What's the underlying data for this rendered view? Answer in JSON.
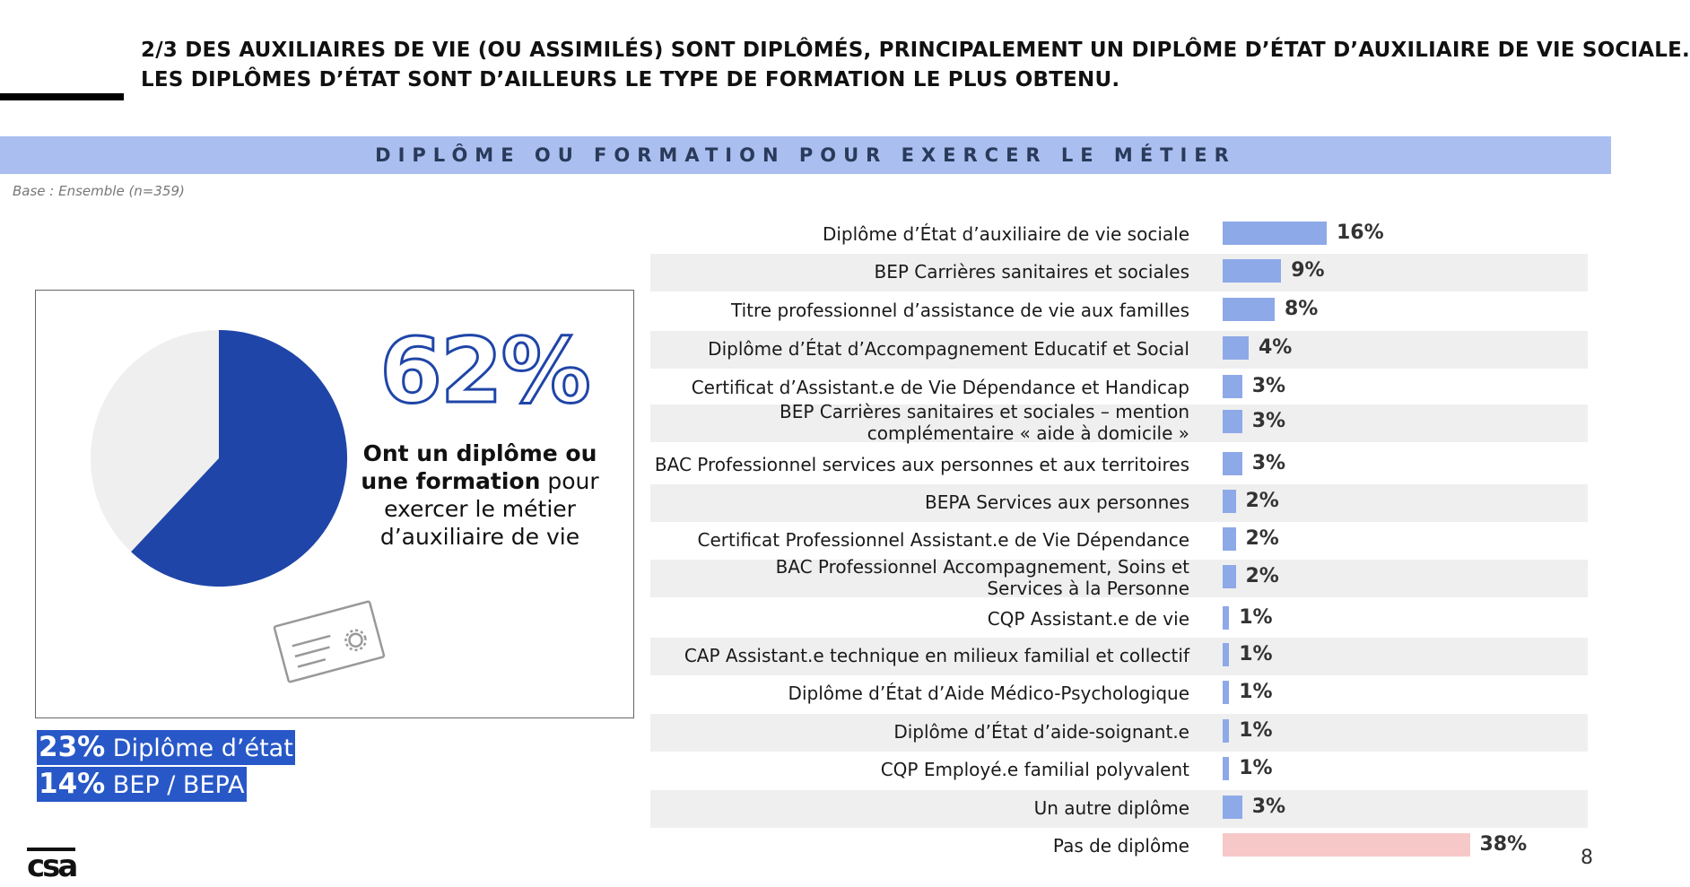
{
  "header": {
    "title_line1": "2/3 DES AUXILIAIRES DE VIE (OU ASSIMILÉS) SONT DIPLÔMÉS, PRINCIPALEMENT UN DIPLÔME D’ÉTAT D’AUXILIAIRE DE VIE SOCIALE.",
    "title_line2": "LES DIPLÔMES D’ÉTAT SONT D’AILLEURS LE TYPE DE FORMATION LE PLUS OBTENU.",
    "banner": "DIPLÔME OU FORMATION POUR EXERCER LE MÉTIER",
    "base_note": "Base : Ensemble (n=359)"
  },
  "summary": {
    "pie_share": 0.62,
    "big_pct": "62%",
    "caption_bold": "Ont un diplôme ou une formation",
    "caption_rest": "pour exercer le métier d’auxiliaire de vie",
    "highlight1_pct": "23%",
    "highlight1_label": "Diplôme d’état",
    "highlight2_pct": "14%",
    "highlight2_label": "BEP / BEPA",
    "pie_colors": {
      "main": "#1f45a8",
      "rest": "#efefef"
    }
  },
  "chart_data": {
    "type": "bar",
    "orientation": "horizontal",
    "categories": [
      "Diplôme d’État d’auxiliaire de vie sociale",
      "BEP Carrières sanitaires et sociales",
      "Titre professionnel d’assistance de vie aux familles",
      "Diplôme d’État d’Accompagnement Educatif et Social",
      "Certificat d’Assistant.e de Vie Dépendance et Handicap",
      "BEP Carrières sanitaires et sociales – mention complémentaire « aide à domicile »",
      "BAC Professionnel services aux personnes et aux territoires",
      "BEPA Services aux personnes",
      "Certificat Professionnel Assistant.e de Vie Dépendance",
      "BAC Professionnel Accompagnement, Soins et Services à la Personne",
      "CQP Assistant.e de vie",
      "CAP Assistant.e technique en milieux familial et collectif",
      "Diplôme d’État d’Aide Médico-Psychologique",
      "Diplôme d’État d’aide-soignant.e",
      "CQP Employé.e familial polyvalent",
      "Un autre diplôme",
      "Pas de diplôme"
    ],
    "values": [
      16,
      9,
      8,
      4,
      3,
      3,
      3,
      2,
      2,
      2,
      1,
      1,
      1,
      1,
      1,
      3,
      38
    ],
    "value_labels": [
      "16%",
      "9%",
      "8%",
      "4%",
      "3%",
      "3%",
      "3%",
      "2%",
      "2%",
      "2%",
      "1%",
      "1%",
      "1%",
      "1%",
      "1%",
      "3%",
      "38%"
    ],
    "colors": {
      "default": "#8ea9e8",
      "no_diploma": "#f7c8c8"
    },
    "unit": "%"
  },
  "footer": {
    "logo": "csa",
    "page_number": "8"
  }
}
